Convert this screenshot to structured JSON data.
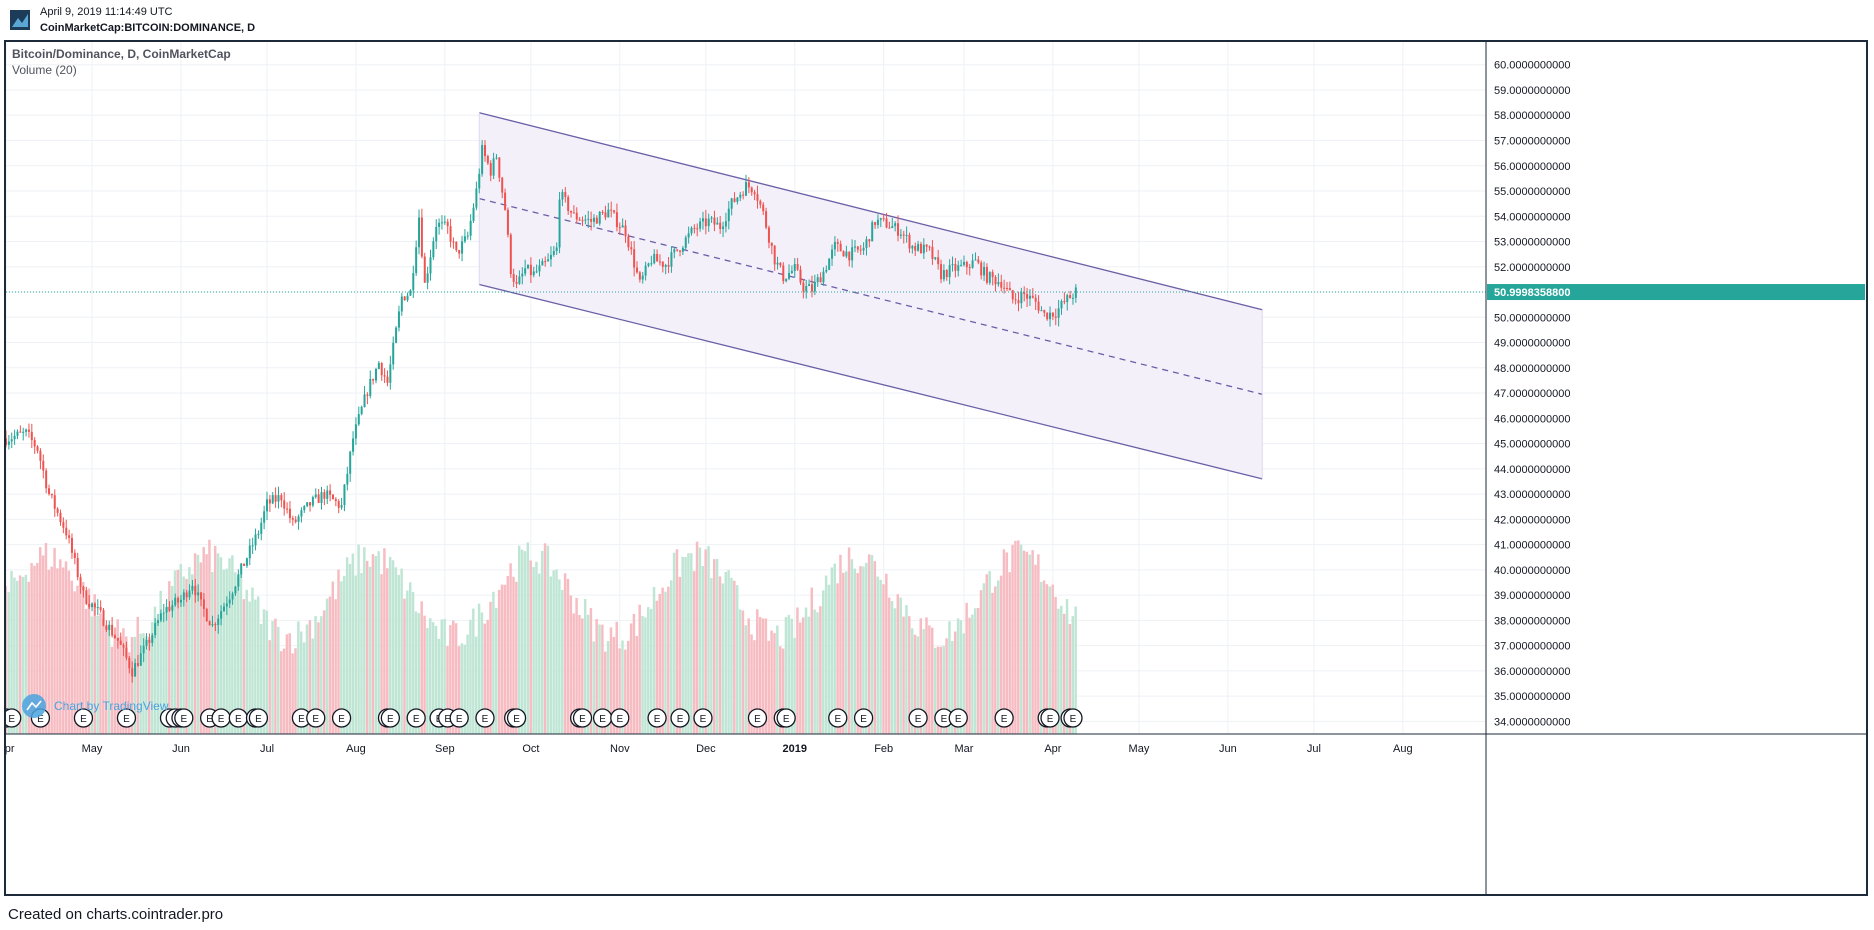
{
  "header": {
    "date": "April 9, 2019 11:14:49 UTC",
    "symbol": "CoinMarketCap:BITCOIN:DOMINANCE, D"
  },
  "footer": {
    "text": "Created on charts.cointrader.pro"
  },
  "colors": {
    "up": "#26a69a",
    "down": "#ef5350",
    "volume_up": "#bfe5d4",
    "volume_down": "#f6bcc2",
    "channel_line": "#6b5fa6",
    "channel_fill": "#f3f0fa",
    "price_line": "#26a69a",
    "frame": "#1c2a3a"
  },
  "chart_data": {
    "type": "candlestick",
    "title": "Bitcoin/Dominance, D, CoinMarketCap",
    "subtitle": "Volume (20)",
    "watermark": "Chart by TradingView",
    "ylim": [
      33.5,
      60.9
    ],
    "y_ticks": [
      "60.0000000000",
      "59.0000000000",
      "58.0000000000",
      "57.0000000000",
      "56.0000000000",
      "55.0000000000",
      "54.0000000000",
      "53.0000000000",
      "52.0000000000",
      "51.0000000000",
      "50.0000000000",
      "49.0000000000",
      "48.0000000000",
      "47.0000000000",
      "46.0000000000",
      "45.0000000000",
      "44.0000000000",
      "43.0000000000",
      "42.0000000000",
      "41.0000000000",
      "40.0000000000",
      "39.0000000000",
      "38.0000000000",
      "37.0000000000",
      "36.0000000000",
      "35.0000000000",
      "34.0000000000"
    ],
    "x_ticks": [
      {
        "label": "Apr",
        "date": "2018-04-01"
      },
      {
        "label": "May",
        "date": "2018-05-01"
      },
      {
        "label": "Jun",
        "date": "2018-06-01"
      },
      {
        "label": "Jul",
        "date": "2018-07-01"
      },
      {
        "label": "Aug",
        "date": "2018-08-01"
      },
      {
        "label": "Sep",
        "date": "2018-09-01"
      },
      {
        "label": "Oct",
        "date": "2018-10-01"
      },
      {
        "label": "Nov",
        "date": "2018-11-01"
      },
      {
        "label": "Dec",
        "date": "2018-12-01"
      },
      {
        "label": "2019",
        "date": "2019-01-01"
      },
      {
        "label": "Feb",
        "date": "2019-02-01"
      },
      {
        "label": "Mar",
        "date": "2019-03-01"
      },
      {
        "label": "Apr",
        "date": "2019-04-01"
      },
      {
        "label": "May",
        "date": "2019-05-01"
      },
      {
        "label": "Jun",
        "date": "2019-06-01"
      },
      {
        "label": "Jul",
        "date": "2019-07-01"
      },
      {
        "label": "Aug",
        "date": "2019-08-01"
      }
    ],
    "x_range": [
      "2018-04-01",
      "2019-08-30"
    ],
    "price_keypoints": [
      [
        "2018-04-01",
        45.2
      ],
      [
        "2018-04-08",
        45.4
      ],
      [
        "2018-04-12",
        44.8
      ],
      [
        "2018-04-16",
        43.0
      ],
      [
        "2018-04-22",
        41.5
      ],
      [
        "2018-04-28",
        39.0
      ],
      [
        "2018-05-04",
        38.2
      ],
      [
        "2018-05-10",
        37.2
      ],
      [
        "2018-05-15",
        36.0
      ],
      [
        "2018-05-20",
        37.0
      ],
      [
        "2018-05-26",
        38.4
      ],
      [
        "2018-06-01",
        38.8
      ],
      [
        "2018-06-05",
        39.5
      ],
      [
        "2018-06-08",
        38.6
      ],
      [
        "2018-06-12",
        37.8
      ],
      [
        "2018-06-18",
        39.0
      ],
      [
        "2018-06-24",
        40.5
      ],
      [
        "2018-06-28",
        41.5
      ],
      [
        "2018-07-01",
        42.6
      ],
      [
        "2018-07-06",
        42.9
      ],
      [
        "2018-07-10",
        41.8
      ],
      [
        "2018-07-16",
        42.6
      ],
      [
        "2018-07-21",
        43.0
      ],
      [
        "2018-07-27",
        42.5
      ],
      [
        "2018-07-31",
        45.2
      ],
      [
        "2018-08-05",
        47.1
      ],
      [
        "2018-08-09",
        48.2
      ],
      [
        "2018-08-12",
        47.4
      ],
      [
        "2018-08-17",
        50.8
      ],
      [
        "2018-08-20",
        51.0
      ],
      [
        "2018-08-23",
        54.0
      ],
      [
        "2018-08-25",
        51.3
      ],
      [
        "2018-08-29",
        53.7
      ],
      [
        "2018-09-02",
        53.5
      ],
      [
        "2018-09-05",
        52.5
      ],
      [
        "2018-09-09",
        53.2
      ],
      [
        "2018-09-12",
        55.0
      ],
      [
        "2018-09-14",
        56.6
      ],
      [
        "2018-09-17",
        55.8
      ],
      [
        "2018-09-19",
        56.4
      ],
      [
        "2018-09-22",
        54.3
      ],
      [
        "2018-09-24",
        51.9
      ],
      [
        "2018-09-26",
        51.2
      ],
      [
        "2018-09-29",
        51.9
      ],
      [
        "2018-10-02",
        51.7
      ],
      [
        "2018-10-07",
        52.2
      ],
      [
        "2018-10-10",
        52.7
      ],
      [
        "2018-10-11",
        54.9
      ],
      [
        "2018-10-16",
        54.0
      ],
      [
        "2018-10-22",
        53.8
      ],
      [
        "2018-10-28",
        54.2
      ],
      [
        "2018-11-03",
        53.4
      ],
      [
        "2018-11-08",
        51.3
      ],
      [
        "2018-11-12",
        52.3
      ],
      [
        "2018-11-17",
        52.1
      ],
      [
        "2018-11-22",
        52.8
      ],
      [
        "2018-11-27",
        53.5
      ],
      [
        "2018-12-02",
        53.8
      ],
      [
        "2018-12-06",
        53.6
      ],
      [
        "2018-12-10",
        54.5
      ],
      [
        "2018-12-15",
        55.2
      ],
      [
        "2018-12-18",
        55.1
      ],
      [
        "2018-12-21",
        54.1
      ],
      [
        "2018-12-25",
        52.3
      ],
      [
        "2018-12-28",
        51.6
      ],
      [
        "2019-01-01",
        51.9
      ],
      [
        "2019-01-04",
        51.2
      ],
      [
        "2019-01-07",
        51.1
      ],
      [
        "2019-01-11",
        51.8
      ],
      [
        "2019-01-15",
        52.8
      ],
      [
        "2019-01-20",
        52.5
      ],
      [
        "2019-01-25",
        52.7
      ],
      [
        "2019-01-29",
        53.8
      ],
      [
        "2019-02-02",
        53.7
      ],
      [
        "2019-02-07",
        53.4
      ],
      [
        "2019-02-11",
        52.8
      ],
      [
        "2019-02-17",
        52.6
      ],
      [
        "2019-02-21",
        51.7
      ],
      [
        "2019-02-25",
        51.9
      ],
      [
        "2019-03-01",
        52.0
      ],
      [
        "2019-03-05",
        52.2
      ],
      [
        "2019-03-09",
        51.6
      ],
      [
        "2019-03-14",
        51.4
      ],
      [
        "2019-03-18",
        50.7
      ],
      [
        "2019-03-22",
        50.9
      ],
      [
        "2019-03-26",
        50.6
      ],
      [
        "2019-03-29",
        50.1
      ],
      [
        "2019-04-02",
        50.2
      ],
      [
        "2019-04-05",
        50.6
      ],
      [
        "2019-04-07",
        50.8
      ],
      [
        "2019-04-09",
        51.0
      ]
    ],
    "current_price_label": "50.9998358800",
    "current_price": 50.99983588,
    "channel": {
      "upper": [
        [
          "2018-09-13",
          58.1
        ],
        [
          "2019-06-13",
          50.3
        ]
      ],
      "middle": [
        [
          "2018-09-13",
          54.7
        ],
        [
          "2019-06-13",
          46.95
        ]
      ],
      "lower": [
        [
          "2018-09-13",
          51.3
        ],
        [
          "2019-06-13",
          43.6
        ]
      ]
    },
    "events": [
      "2018-04-01",
      "2018-04-03",
      "2018-04-13",
      "2018-04-28",
      "2018-05-13",
      "2018-05-28",
      "2018-05-30",
      "2018-06-01",
      "2018-06-02",
      "2018-06-11",
      "2018-06-15",
      "2018-06-21",
      "2018-06-27",
      "2018-06-28",
      "2018-07-13",
      "2018-07-18",
      "2018-07-27",
      "2018-08-12",
      "2018-08-13",
      "2018-08-22",
      "2018-08-30",
      "2018-09-02",
      "2018-09-06",
      "2018-09-15",
      "2018-09-25",
      "2018-09-26",
      "2018-10-18",
      "2018-10-19",
      "2018-10-26",
      "2018-11-01",
      "2018-11-14",
      "2018-11-22",
      "2018-11-30",
      "2018-12-19",
      "2018-12-28",
      "2018-12-29",
      "2019-01-16",
      "2019-01-25",
      "2019-02-13",
      "2019-02-22",
      "2019-02-27",
      "2019-03-15",
      "2019-03-30",
      "2019-03-31",
      "2019-04-07",
      "2019-04-08"
    ],
    "event_label": "E",
    "volume_note": "Volume (20) histogram, up/down colored bars"
  }
}
